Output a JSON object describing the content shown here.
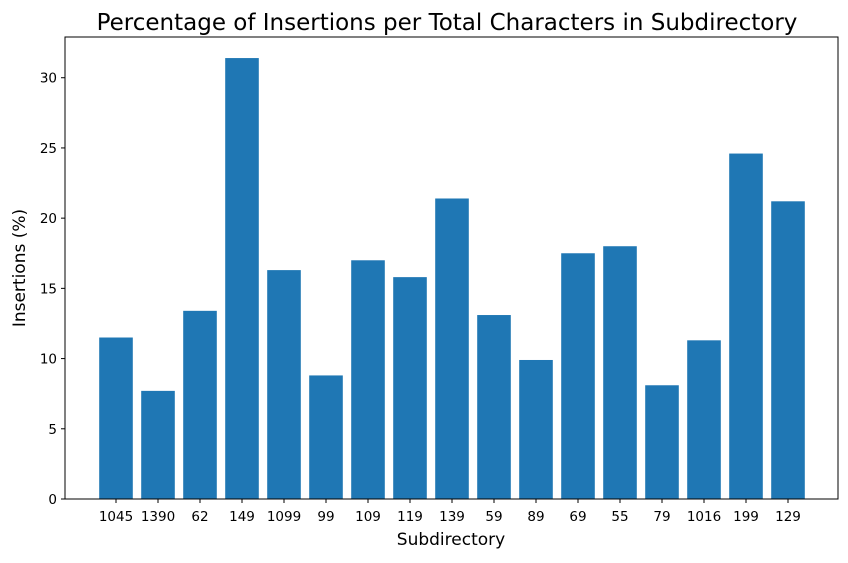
{
  "chart_data": {
    "type": "bar",
    "title": "Percentage of Insertions per Total Characters in Subdirectory",
    "xlabel": "Subdirectory",
    "ylabel": "Insertions (%)",
    "categories": [
      "1045",
      "1390",
      "62",
      "149",
      "1099",
      "99",
      "109",
      "119",
      "139",
      "59",
      "89",
      "69",
      "55",
      "79",
      "1016",
      "199",
      "129"
    ],
    "values": [
      11.5,
      7.7,
      13.4,
      31.4,
      16.3,
      8.8,
      17.0,
      15.8,
      21.4,
      13.1,
      9.9,
      17.5,
      18.0,
      8.1,
      11.3,
      24.6,
      21.2
    ],
    "ylim": [
      0,
      32.9
    ],
    "yticks": [
      "0",
      "5",
      "10",
      "15",
      "20",
      "25",
      "30"
    ],
    "grid": false,
    "legend": "none",
    "colors": {
      "bar": "#1f77b4",
      "axis": "#000000",
      "background": "#ffffff"
    }
  }
}
